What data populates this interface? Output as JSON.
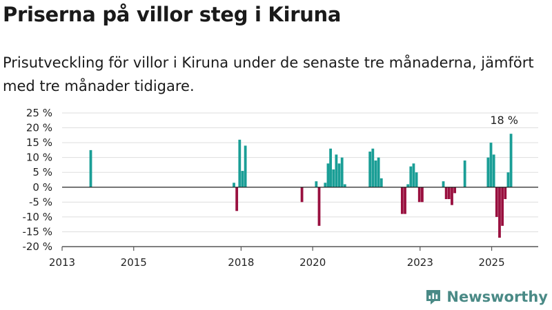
{
  "header": {
    "title": "Priserna på villor steg i Kiruna",
    "subtitle": "Prisutveckling för villor i Kiruna under de senaste tre månaderna, jämfört med tre månader tidigare."
  },
  "brand": {
    "name": "Newsworthy",
    "icon": "newsworthy-logo-icon",
    "color": "#4a8a86"
  },
  "colors": {
    "positive": "#1a9e96",
    "negative": "#99103f",
    "grid": "#dddddd",
    "axis": "#555555"
  },
  "chart_data": {
    "type": "bar",
    "title": "Priserna på villor steg i Kiruna",
    "subtitle": "Prisutveckling för villor i Kiruna under de senaste tre månaderna, jämfört med tre månader tidigare.",
    "xlabel": "",
    "ylabel": "",
    "unit": "%",
    "ylim": [
      -20,
      25
    ],
    "xlim": [
      2013.0,
      2026.3
    ],
    "y_ticks": [
      25,
      20,
      15,
      10,
      5,
      0,
      -5,
      -10,
      -15,
      -20
    ],
    "y_tick_labels": [
      "25 %",
      "20 %",
      "15 %",
      "10 %",
      "5 %",
      "0 %",
      "-5 %",
      "-10 %",
      "-15 %",
      "-20 %"
    ],
    "x_ticks": [
      2013,
      2015,
      2018,
      2020,
      2023,
      2025
    ],
    "x_tick_labels": [
      "2013",
      "2015",
      "2018",
      "2020",
      "2023",
      "2025"
    ],
    "grid": true,
    "annotation": {
      "label": "18 %",
      "x": 2025.58,
      "y": 18
    },
    "bars": [
      {
        "x": 2013.8,
        "y": 12.5
      },
      {
        "x": 2017.8,
        "y": 1.5
      },
      {
        "x": 2017.88,
        "y": -8
      },
      {
        "x": 2017.96,
        "y": 16
      },
      {
        "x": 2018.04,
        "y": 5.5
      },
      {
        "x": 2018.12,
        "y": 14
      },
      {
        "x": 2019.7,
        "y": -5
      },
      {
        "x": 2020.1,
        "y": 2
      },
      {
        "x": 2020.18,
        "y": -13
      },
      {
        "x": 2020.35,
        "y": 1.5
      },
      {
        "x": 2020.43,
        "y": 8
      },
      {
        "x": 2020.5,
        "y": 13
      },
      {
        "x": 2020.58,
        "y": 6
      },
      {
        "x": 2020.66,
        "y": 11
      },
      {
        "x": 2020.74,
        "y": 8
      },
      {
        "x": 2020.82,
        "y": 10
      },
      {
        "x": 2020.9,
        "y": 1
      },
      {
        "x": 2021.6,
        "y": 12
      },
      {
        "x": 2021.68,
        "y": 13
      },
      {
        "x": 2021.76,
        "y": 9
      },
      {
        "x": 2021.84,
        "y": 10
      },
      {
        "x": 2021.92,
        "y": 3
      },
      {
        "x": 2022.5,
        "y": -9
      },
      {
        "x": 2022.58,
        "y": -9
      },
      {
        "x": 2022.66,
        "y": 1
      },
      {
        "x": 2022.74,
        "y": 7
      },
      {
        "x": 2022.82,
        "y": 8
      },
      {
        "x": 2022.9,
        "y": 5
      },
      {
        "x": 2022.98,
        "y": -5
      },
      {
        "x": 2023.06,
        "y": -5
      },
      {
        "x": 2023.65,
        "y": 2
      },
      {
        "x": 2023.73,
        "y": -4
      },
      {
        "x": 2023.81,
        "y": -4
      },
      {
        "x": 2023.89,
        "y": -6
      },
      {
        "x": 2023.97,
        "y": -2
      },
      {
        "x": 2024.25,
        "y": 9
      },
      {
        "x": 2024.9,
        "y": 10
      },
      {
        "x": 2024.98,
        "y": 15
      },
      {
        "x": 2025.06,
        "y": 11
      },
      {
        "x": 2025.14,
        "y": -10
      },
      {
        "x": 2025.22,
        "y": -17
      },
      {
        "x": 2025.3,
        "y": -13
      },
      {
        "x": 2025.38,
        "y": -4
      },
      {
        "x": 2025.46,
        "y": 5
      },
      {
        "x": 2025.54,
        "y": 18
      }
    ]
  }
}
